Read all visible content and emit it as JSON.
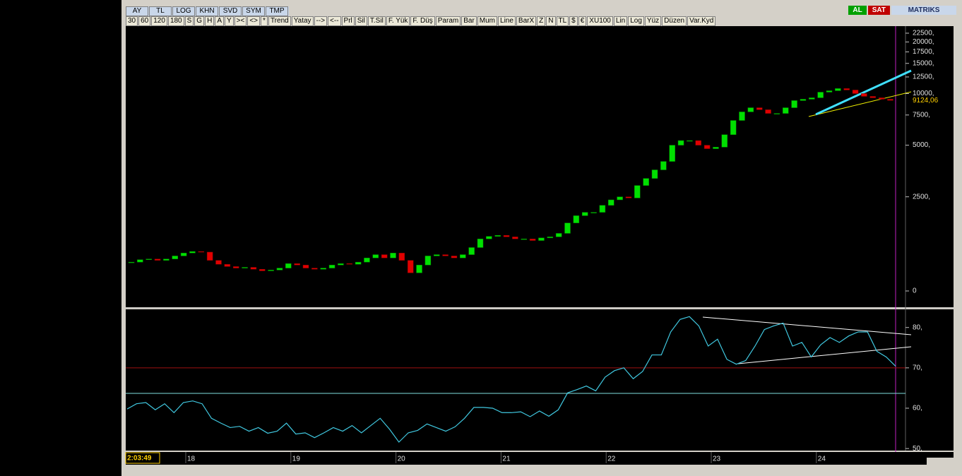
{
  "toolbar": {
    "row1": [
      "AY",
      "TL",
      "LOG",
      "KHN",
      "SVD",
      "SYM",
      "TMP"
    ],
    "row2": [
      "30",
      "60",
      "120",
      "180",
      "S",
      "G",
      "H",
      "A",
      "Y",
      "><",
      "<>",
      "*",
      "Trend",
      "Yatay",
      "-->",
      "<--",
      "Prl",
      "Sil",
      "T.Sil",
      "F. Yük",
      "F. Düş",
      "Param",
      "Bar",
      "Mum",
      "Line",
      "BarX",
      "Z",
      "N",
      "TL",
      "$",
      "€",
      "XU100",
      "Lin",
      "Log",
      "Yüz",
      "Düzen",
      "Var.Kyd"
    ],
    "buy": "AL",
    "sell": "SAT",
    "brand": "MATRIKS"
  },
  "chart_data": [
    {
      "type": "candlestick",
      "log_scale": true,
      "open": [
        1030,
        1040,
        1075,
        1085,
        1065,
        1085,
        1130,
        1175,
        1200,
        1190,
        1065,
        1010,
        980,
        960,
        970,
        945,
        925,
        935,
        960,
        1020,
        1000,
        960,
        945,
        960,
        1000,
        1020,
        1010,
        1040,
        1100,
        1150,
        1100,
        1175,
        1065,
        900,
        1000,
        1130,
        1150,
        1130,
        1100,
        1150,
        1265,
        1420,
        1470,
        1490,
        1460,
        1420,
        1420,
        1390,
        1440,
        1460,
        1530,
        1760,
        1940,
        2030,
        2030,
        2230,
        2400,
        2500,
        2460,
        2910,
        3200,
        3590,
        4020,
        5000,
        5320,
        5320,
        5000,
        4770,
        4870,
        5760,
        6970,
        7820,
        8270,
        8050,
        7660,
        7660,
        8270,
        9100,
        9270,
        9450,
        10190,
        10390,
        10700,
        10490,
        10000,
        9630,
        9450,
        9270
      ],
      "close": [
        1040,
        1075,
        1085,
        1065,
        1085,
        1130,
        1175,
        1200,
        1190,
        1065,
        1010,
        980,
        960,
        970,
        945,
        925,
        935,
        960,
        1020,
        1000,
        960,
        945,
        960,
        1000,
        1020,
        1010,
        1040,
        1100,
        1150,
        1100,
        1175,
        1065,
        900,
        1000,
        1130,
        1150,
        1130,
        1100,
        1150,
        1265,
        1420,
        1470,
        1490,
        1460,
        1420,
        1420,
        1390,
        1440,
        1460,
        1530,
        1760,
        1940,
        2030,
        2030,
        2230,
        2400,
        2500,
        2460,
        2910,
        3200,
        3590,
        4020,
        5000,
        5320,
        5320,
        5000,
        4770,
        4870,
        5760,
        6970,
        7820,
        8270,
        8050,
        7660,
        7660,
        8270,
        9100,
        9270,
        9450,
        10190,
        10390,
        10700,
        10490,
        10000,
        9630,
        9450,
        9270,
        9124.06
      ],
      "up_color": "#00e000",
      "down_color": "#e00000",
      "ylim": [
        706,
        24500
      ],
      "yticks": [
        {
          "value": 22500,
          "label": "22500,"
        },
        {
          "value": 20000,
          "label": "20000,"
        },
        {
          "value": 17500,
          "label": "17500,"
        },
        {
          "value": 15000,
          "label": "15000,"
        },
        {
          "value": 12500,
          "label": "12500,"
        },
        {
          "value": 10000,
          "label": "10000,"
        },
        {
          "value": 7500,
          "label": "7500,"
        },
        {
          "value": 5000,
          "label": "5000,"
        },
        {
          "value": 2500,
          "label": "2500,"
        },
        0
      ],
      "last_price": {
        "value": 9124.06,
        "label": "9124,06"
      }
    },
    {
      "type": "line",
      "color": "#40c8e0",
      "values": [
        59.8,
        61.1,
        61.4,
        59.6,
        61.1,
        58.9,
        61.4,
        61.8,
        61.1,
        57.5,
        56.3,
        55.2,
        55.5,
        54.3,
        55.2,
        53.8,
        54.3,
        56.3,
        53.6,
        53.9,
        52.7,
        53.9,
        55.2,
        54.3,
        55.7,
        53.9,
        55.7,
        57.5,
        54.8,
        51.6,
        53.9,
        54.5,
        56.1,
        55.2,
        54.3,
        55.4,
        57.5,
        60.2,
        60.2,
        60.0,
        58.9,
        58.9,
        59.1,
        57.9,
        59.3,
        58.0,
        59.6,
        63.8,
        64.6,
        65.5,
        64.3,
        67.7,
        69.3,
        70.0,
        67.3,
        69.1,
        73.2,
        73.2,
        78.9,
        82.0,
        82.7,
        80.4,
        75.4,
        77.1,
        72.1,
        70.9,
        71.8,
        75.4,
        79.5,
        80.4,
        81.1,
        75.4,
        76.3,
        72.7,
        75.7,
        77.5,
        76.3,
        77.9,
        78.9,
        78.9,
        74.1,
        72.7,
        70.4
      ],
      "ylim": [
        49.5,
        84.5
      ],
      "yticks": [
        {
          "value": 80,
          "label": "80,"
        },
        {
          "value": 70,
          "label": "70,"
        },
        {
          "value": 60,
          "label": "60,"
        },
        {
          "value": 50,
          "label": "50,"
        }
      ],
      "level": 70,
      "level_color": "#a01010",
      "x_labels": [
        "18",
        "19",
        "20",
        "21",
        "22",
        "23",
        "24"
      ],
      "time": "2:03:49"
    }
  ]
}
